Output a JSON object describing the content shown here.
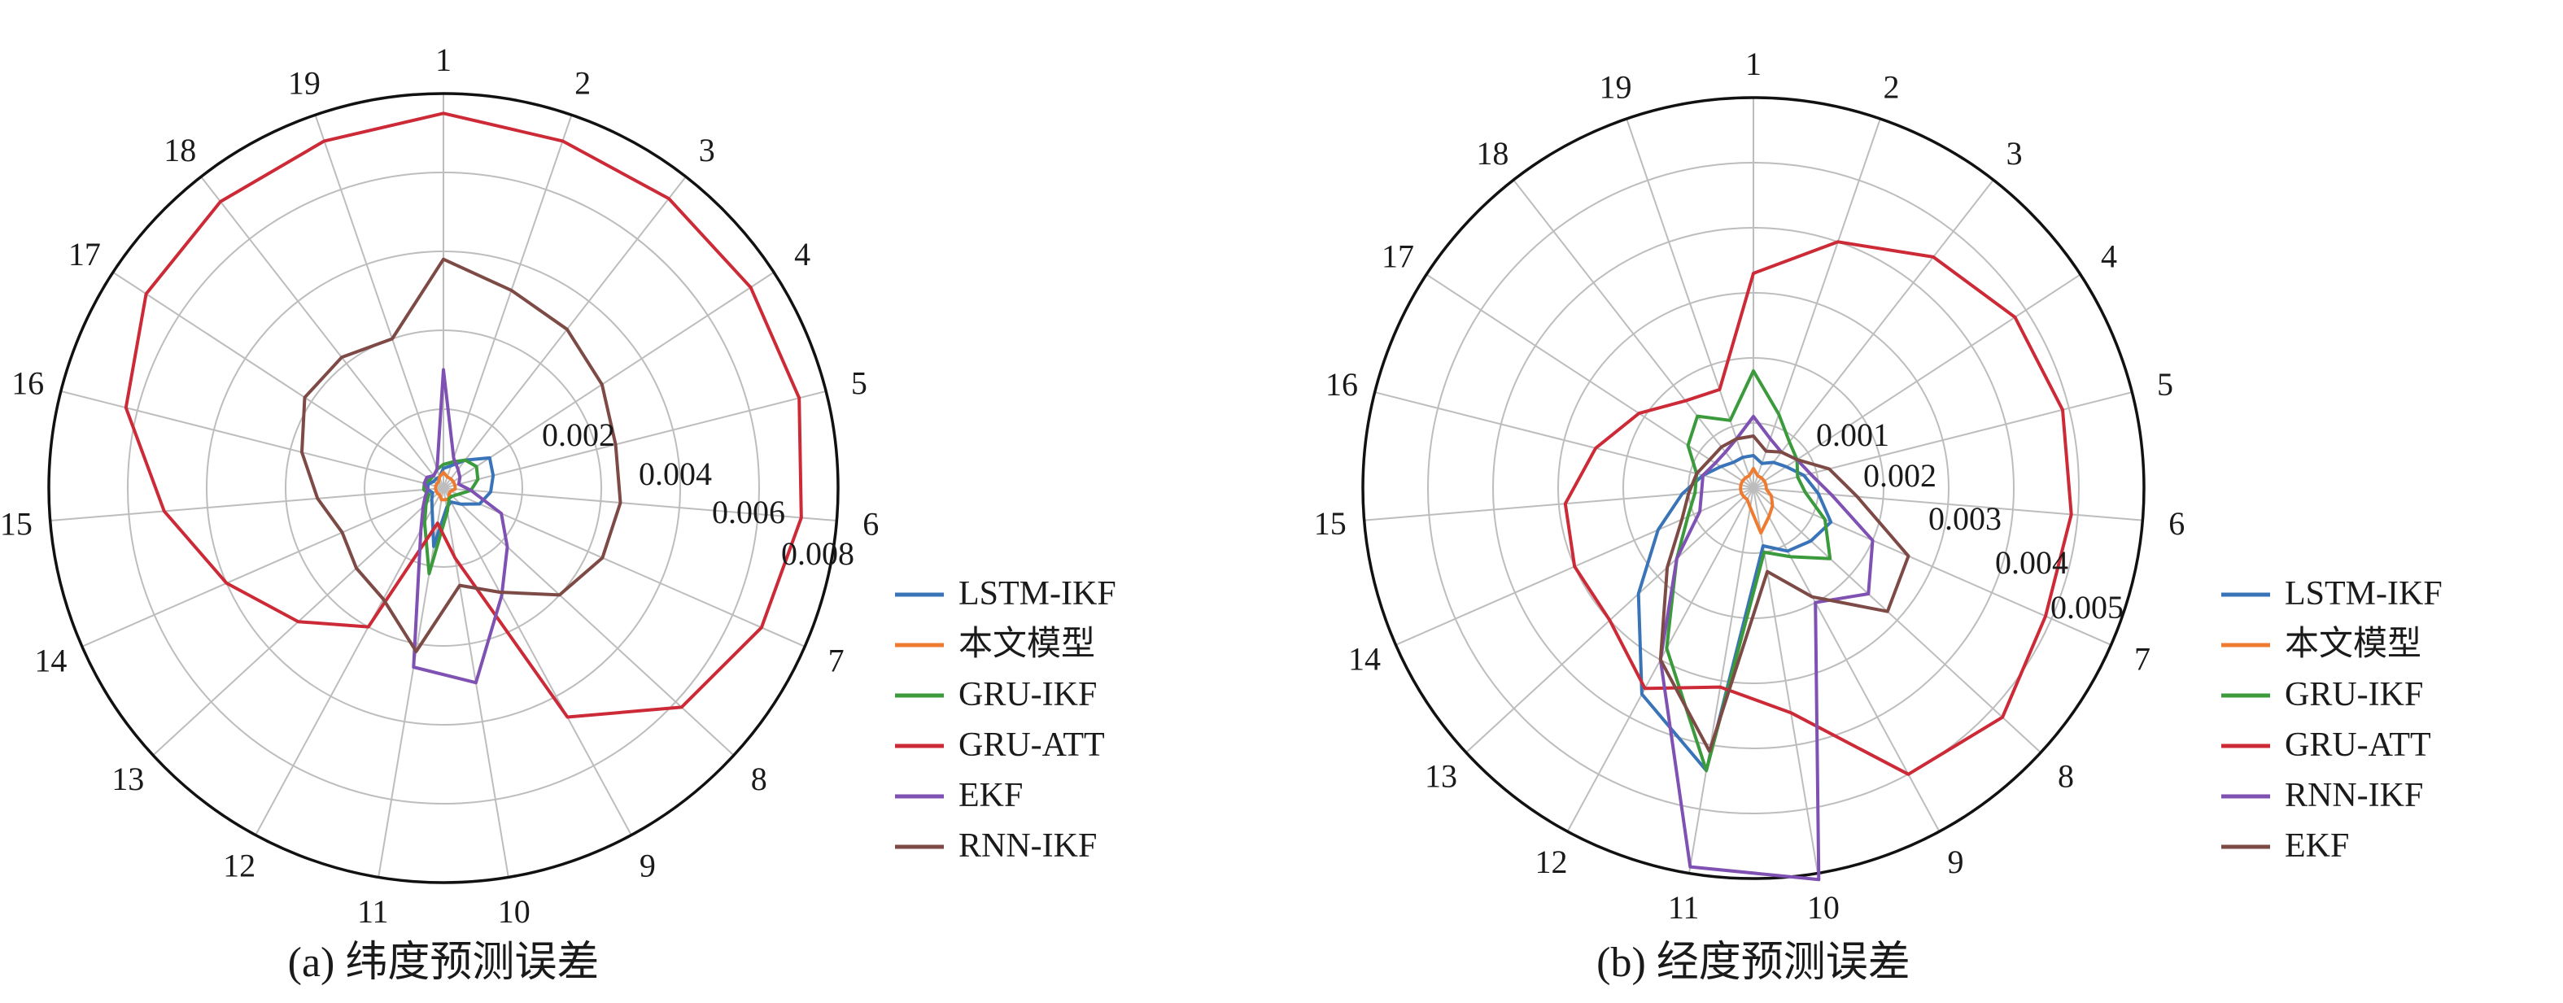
{
  "chart_data": [
    {
      "type": "radar",
      "caption": "(a) 纬度预测误差",
      "categories": [
        "1",
        "2",
        "3",
        "4",
        "5",
        "6",
        "7",
        "8",
        "9",
        "10",
        "11",
        "12",
        "13",
        "14",
        "15",
        "16",
        "17",
        "18",
        "19"
      ],
      "radial_ticks": [
        "0.002",
        "0.004",
        "0.006",
        "0.008"
      ],
      "rmax": 0.01,
      "series": [
        {
          "name": "LSTM-IKF",
          "color": "#3a74b8",
          "values": [
            0.0005,
            0.0006,
            0.0009,
            0.0014,
            0.0013,
            0.0012,
            0.001,
            0.0006,
            0.0004,
            0.0005,
            0.0015,
            0.0006,
            0.0004,
            0.0003,
            0.0004,
            0.0004,
            0.0003,
            0.0003,
            0.0003
          ]
        },
        {
          "name": "本文模型",
          "color": "#ee7b30",
          "values": [
            0.0004,
            0.0003,
            0.0003,
            0.0003,
            0.0003,
            0.0003,
            0.0002,
            0.0002,
            0.0003,
            0.0003,
            0.0003,
            0.0002,
            0.0002,
            0.0002,
            0.0002,
            0.0002,
            0.0002,
            0.0002,
            0.0003
          ]
        },
        {
          "name": "GRU-IKF",
          "color": "#3b9a3b",
          "values": [
            0.0006,
            0.0007,
            0.0009,
            0.001,
            0.0009,
            0.0007,
            0.0004,
            0.0003,
            0.0003,
            0.0006,
            0.0022,
            0.001,
            0.0006,
            0.0004,
            0.0005,
            0.0005,
            0.0004,
            0.0004,
            0.0005
          ]
        },
        {
          "name": "GRU-ATT",
          "color": "#cc2a36",
          "values": [
            0.0095,
            0.0093,
            0.0093,
            0.0093,
            0.0093,
            0.0091,
            0.0088,
            0.0082,
            0.0066,
            0.0018,
            0.0009,
            0.004,
            0.005,
            0.006,
            0.0071,
            0.0083,
            0.009,
            0.0092,
            0.0093
          ]
        },
        {
          "name": "EKF",
          "color": "#7e51b3",
          "values": [
            0.003,
            0.0008,
            0.0006,
            0.0005,
            0.0004,
            0.0007,
            0.0016,
            0.0022,
            0.0031,
            0.005,
            0.0046,
            0.0012,
            0.0007,
            0.0005,
            0.0004,
            0.0005,
            0.0005,
            0.0004,
            0.0005
          ]
        },
        {
          "name": "RNN-IKF",
          "color": "#7d4a45",
          "values": [
            0.0058,
            0.0053,
            0.0051,
            0.0048,
            0.0045,
            0.0045,
            0.0044,
            0.004,
            0.003,
            0.0025,
            0.0042,
            0.0032,
            0.003,
            0.0028,
            0.0032,
            0.0037,
            0.0042,
            0.0042,
            0.004
          ]
        }
      ]
    },
    {
      "type": "radar",
      "caption": "(b) 经度预测误差",
      "categories": [
        "1",
        "2",
        "3",
        "4",
        "5",
        "6",
        "7",
        "8",
        "9",
        "10",
        "11",
        "12",
        "13",
        "14",
        "15",
        "16",
        "17",
        "18",
        "19"
      ],
      "radial_ticks": [
        "0.001",
        "0.002",
        "0.003",
        "0.004",
        "0.005"
      ],
      "rmax": 0.006,
      "series": [
        {
          "name": "LSTM-IKF",
          "color": "#3a74b8",
          "values": [
            0.0005,
            0.0004,
            0.0005,
            0.0006,
            0.0008,
            0.001,
            0.0013,
            0.0012,
            0.0011,
            0.0009,
            0.0044,
            0.0036,
            0.0024,
            0.0016,
            0.0011,
            0.0008,
            0.0006,
            0.0005,
            0.0005
          ]
        },
        {
          "name": "本文模型",
          "color": "#ee7b30",
          "values": [
            0.0003,
            0.0002,
            0.0002,
            0.0002,
            0.0002,
            0.0002,
            0.0003,
            0.0004,
            0.0005,
            0.0007,
            0.0003,
            0.0002,
            0.0002,
            0.0002,
            0.0002,
            0.0002,
            0.0002,
            0.0002,
            0.0002
          ]
        },
        {
          "name": "GRU-IKF",
          "color": "#3b9a3b",
          "values": [
            0.0018,
            0.0012,
            0.0009,
            0.0008,
            0.0007,
            0.0008,
            0.0012,
            0.0016,
            0.0012,
            0.001,
            0.0044,
            0.0028,
            0.0016,
            0.0011,
            0.0009,
            0.0009,
            0.0012,
            0.0014,
            0.0011
          ]
        },
        {
          "name": "GRU-ATT",
          "color": "#cc2a36",
          "values": [
            0.0033,
            0.004,
            0.0045,
            0.0048,
            0.0049,
            0.0049,
            0.0049,
            0.0052,
            0.005,
            0.0035,
            0.0031,
            0.0035,
            0.003,
            0.003,
            0.0029,
            0.0025,
            0.0021,
            0.0017,
            0.0016
          ]
        },
        {
          "name": "RNN-IKF",
          "color": "#7e51b3",
          "values": [
            0.0011,
            0.0008,
            0.0007,
            0.0008,
            0.0009,
            0.0012,
            0.002,
            0.0024,
            0.002,
            0.0061,
            0.0059,
            0.003,
            0.0016,
            0.0009,
            0.0008,
            0.0008,
            0.0007,
            0.0007,
            0.0008
          ]
        },
        {
          "name": "EKF",
          "color": "#7d4a45",
          "values": [
            0.0008,
            0.0006,
            0.0007,
            0.0008,
            0.0012,
            0.0016,
            0.0026,
            0.0028,
            0.0019,
            0.0013,
            0.0041,
            0.003,
            0.0018,
            0.0012,
            0.001,
            0.0009,
            0.0008,
            0.0008,
            0.0008
          ]
        }
      ]
    }
  ]
}
